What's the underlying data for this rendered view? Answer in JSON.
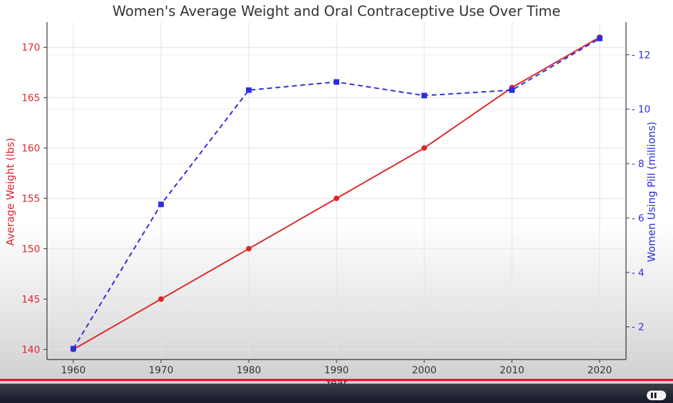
{
  "chart_data": {
    "type": "line",
    "title": "Women's Average Weight and Oral Contraceptive Use Over Time",
    "xlabel": "Year",
    "ylabel_left": "Average Weight (lbs)",
    "ylabel_right": "Women Using Pill (millions)",
    "x": [
      1960,
      1970,
      1980,
      1990,
      2000,
      2010,
      2020
    ],
    "x_ticks": [
      1960,
      1970,
      1980,
      1990,
      2000,
      2010,
      2020
    ],
    "y_left_ticks": [
      140,
      145,
      150,
      155,
      160,
      165,
      170
    ],
    "y_right_ticks": [
      2,
      4,
      6,
      8,
      10,
      12
    ],
    "y_left_lim": [
      139,
      172.5
    ],
    "y_right_lim": [
      0.8,
      13.2
    ],
    "grid": true,
    "series": [
      {
        "axis": "left",
        "color": "#e0242a",
        "style": "solid",
        "marker": "circle",
        "values": [
          140,
          145,
          150,
          155,
          160,
          166,
          171
        ]
      },
      {
        "axis": "right",
        "color": "#2d2ce0",
        "style": "dashed",
        "marker": "square",
        "values": [
          1.2,
          6.5,
          10.7,
          11.0,
          10.5,
          10.7,
          12.6
        ]
      }
    ],
    "left_axis_color": "#e0242a",
    "right_axis_color": "#2d2ce0"
  },
  "player": {
    "progress_fraction": 1.0
  }
}
